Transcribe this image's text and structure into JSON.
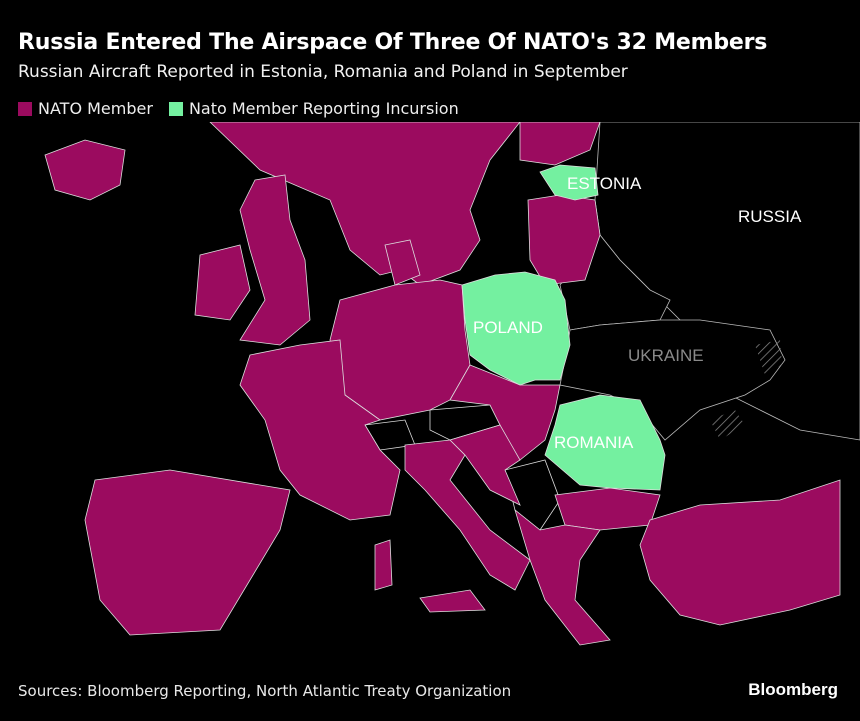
{
  "title": "Russia Entered The Airspace Of Three Of NATO's 32 Members",
  "subtitle": "Russian Aircraft Reported in Estonia, Romania and Poland in September",
  "legend": [
    {
      "label": "NATO Member",
      "color": "#9b0b5f"
    },
    {
      "label": "Nato Member Reporting Incursion",
      "color": "#74f0a0"
    }
  ],
  "map_labels": {
    "estonia": "ESTONIA",
    "russia": "RUSSIA",
    "poland": "POLAND",
    "ukraine": "UKRAINE",
    "romania": "ROMANIA"
  },
  "footer": "Sources: Bloomberg Reporting, North Atlantic Treaty Organization",
  "brand": "Bloomberg"
}
